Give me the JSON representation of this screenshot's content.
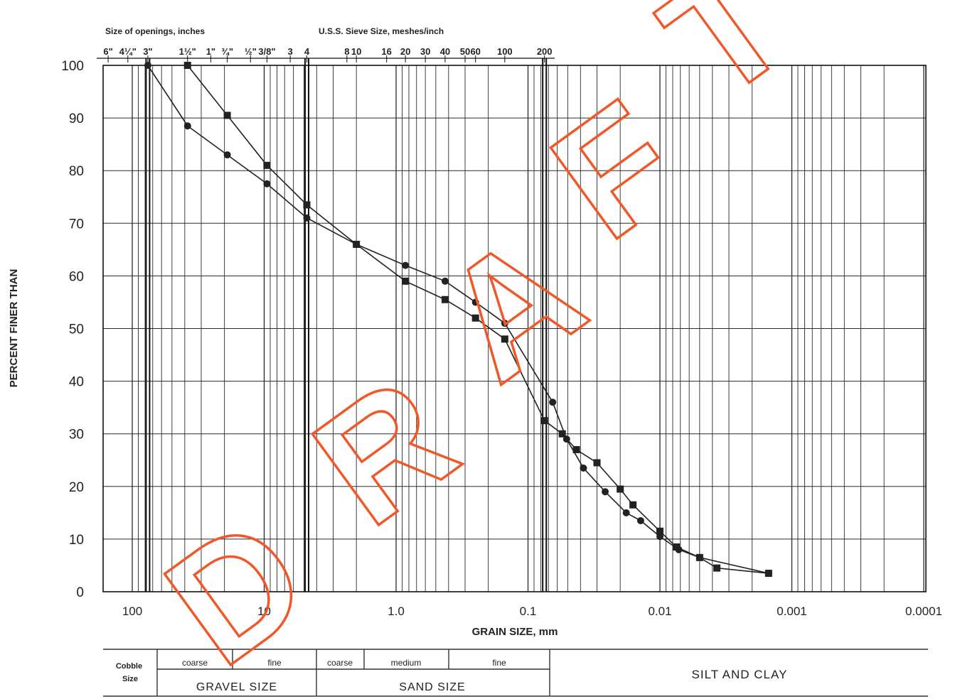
{
  "chart_data": {
    "type": "line",
    "title": "",
    "xlabel": "GRAIN SIZE, mm",
    "ylabel": "PERCENT FINER THAN",
    "x_scale": "log",
    "x_direction": "descending",
    "xlim": [
      100,
      0.0001
    ],
    "ylim": [
      0,
      100
    ],
    "y_ticks": [
      0,
      10,
      20,
      30,
      40,
      50,
      60,
      70,
      80,
      90,
      100
    ],
    "y_tick_labels": [
      "0",
      "10",
      "20",
      "30",
      "40",
      "50",
      "60",
      "70",
      "80",
      "90",
      "100"
    ],
    "x_ticks": [
      100,
      10,
      1.0,
      0.1,
      0.01,
      0.001,
      0.0001
    ],
    "x_tick_labels": [
      "100",
      "10",
      "1.0",
      "0.1",
      "0.01",
      "0.001",
      "0.0001"
    ],
    "grid": true,
    "legend": "none",
    "top_axis": {
      "openings_title": "Size of openings, inches",
      "openings": [
        {
          "label": "6\"",
          "mm": 152.4
        },
        {
          "label": "4¼\"",
          "mm": 108
        },
        {
          "label": "3\"",
          "mm": 76.2
        },
        {
          "label": "1½\"",
          "mm": 38.1
        },
        {
          "label": "1\"",
          "mm": 25.4
        },
        {
          "label": "¾\"",
          "mm": 19.05
        },
        {
          "label": "½\"",
          "mm": 12.7
        },
        {
          "label": "3/8\"",
          "mm": 9.525
        },
        {
          "label": "3",
          "mm": 6.35
        }
      ],
      "sieve_title": "U.S.S. Sieve Size, meshes/inch",
      "sieves": [
        {
          "label": "4",
          "mm": 4.75
        },
        {
          "label": "8",
          "mm": 2.36
        },
        {
          "label": "10",
          "mm": 2.0
        },
        {
          "label": "16",
          "mm": 1.18
        },
        {
          "label": "20",
          "mm": 0.85
        },
        {
          "label": "30",
          "mm": 0.6
        },
        {
          "label": "40",
          "mm": 0.425
        },
        {
          "label": "50",
          "mm": 0.3
        },
        {
          "label": "60",
          "mm": 0.25
        },
        {
          "label": "100",
          "mm": 0.15
        },
        {
          "label": "200",
          "mm": 0.075
        }
      ]
    },
    "series": [
      {
        "marker": "square",
        "x": [
          38.1,
          19.05,
          9.525,
          4.75,
          2.0,
          0.85,
          0.425,
          0.25,
          0.15,
          0.075,
          0.055,
          0.043,
          0.03,
          0.02,
          0.016,
          0.01,
          0.0075,
          0.005,
          0.0037,
          0.0015
        ],
        "values": [
          100,
          90.5,
          81,
          73.5,
          66,
          59,
          55.5,
          52,
          48,
          32.5,
          30,
          27,
          24.5,
          19.5,
          16.5,
          11.5,
          8.5,
          6.5,
          4.5,
          3.5
        ]
      },
      {
        "marker": "circle",
        "x": [
          76.2,
          38.1,
          19.05,
          9.525,
          4.75,
          2.0,
          0.85,
          0.425,
          0.25,
          0.15,
          0.065,
          0.051,
          0.038,
          0.026,
          0.018,
          0.014,
          0.01,
          0.0072,
          0.005,
          0.0015
        ],
        "values": [
          100,
          88.5,
          83,
          77.5,
          71,
          66,
          62,
          59,
          55,
          51,
          36,
          29,
          23.5,
          19,
          15,
          13.5,
          10.5,
          8,
          6.5,
          3.5
        ]
      }
    ]
  },
  "classification": {
    "cobble": "Cobble\nSize",
    "gravel_coarse": "coarse",
    "gravel_fine": "fine",
    "gravel_size": "GRAVEL SIZE",
    "sand_coarse": "coarse",
    "sand_medium": "medium",
    "sand_fine": "fine",
    "sand_size": "SAND SIZE",
    "silt_clay": "SILT AND CLAY"
  },
  "watermark": {
    "text": "DRAFT",
    "color": "#f0582a"
  }
}
